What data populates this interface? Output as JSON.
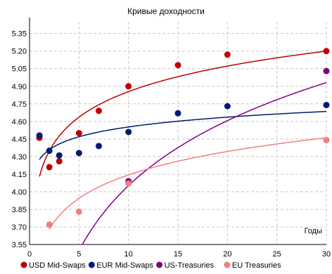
{
  "chart_data": {
    "type": "scatter",
    "title": "Кривые доходности",
    "xlabel": "Годы",
    "ylabel": "",
    "xlim": [
      0,
      30
    ],
    "ylim": [
      3.55,
      5.45
    ],
    "xticks": [
      0,
      5,
      10,
      15,
      20,
      25,
      30
    ],
    "yticks": [
      3.55,
      3.7,
      3.85,
      4.0,
      4.15,
      4.3,
      4.45,
      4.6,
      4.75,
      4.9,
      5.05,
      5.2,
      5.35
    ],
    "ytick_labels": [
      "3.55",
      "3.70",
      "3.85",
      "4.00",
      "4.15",
      "4.30",
      "4.45",
      "4.60",
      "4.75",
      "4.90",
      "5.05",
      "5.20",
      "5.35"
    ],
    "xtick_labels": [
      "0",
      "5",
      "10",
      "15",
      "20",
      "25",
      "30"
    ],
    "grid": true,
    "legend_position": "bottom",
    "series": [
      {
        "name": "USD Mid-Swaps",
        "color": "#c00000",
        "points": [
          [
            1,
            4.46
          ],
          [
            2,
            4.21
          ],
          [
            3,
            4.26
          ],
          [
            5,
            4.5
          ],
          [
            7,
            4.69
          ],
          [
            10,
            4.9
          ],
          [
            15,
            5.08
          ],
          [
            20,
            5.17
          ],
          [
            30,
            5.2
          ]
        ],
        "trend": {
          "a": 4.13,
          "b": 0.3145,
          "x_from": 1,
          "x_to": 30
        }
      },
      {
        "name": "EUR Mid-Swaps",
        "color": "#001a72",
        "points": [
          [
            1,
            4.48
          ],
          [
            2,
            4.35
          ],
          [
            3,
            4.31
          ],
          [
            5,
            4.33
          ],
          [
            7,
            4.39
          ],
          [
            10,
            4.51
          ],
          [
            15,
            4.67
          ],
          [
            20,
            4.73
          ],
          [
            30,
            4.74
          ]
        ],
        "trend": {
          "a": 4.275,
          "b": 0.1206,
          "x_from": 1,
          "x_to": 30
        }
      },
      {
        "name": "US-Treasuries",
        "color": "#800080",
        "points": [
          [
            10,
            4.09
          ],
          [
            30,
            5.03
          ]
        ],
        "trend": {
          "a": 2.21,
          "b": 0.8,
          "x_from": 4.36,
          "x_to": 30
        }
      },
      {
        "name": "EU Treasuries",
        "color": "#f08080",
        "points": [
          [
            2,
            3.72
          ],
          [
            5,
            3.83
          ],
          [
            10,
            4.07
          ],
          [
            30,
            4.44
          ]
        ],
        "trend": {
          "a": 3.48,
          "b": 0.2882,
          "x_from": 2,
          "x_to": 30
        }
      }
    ]
  }
}
